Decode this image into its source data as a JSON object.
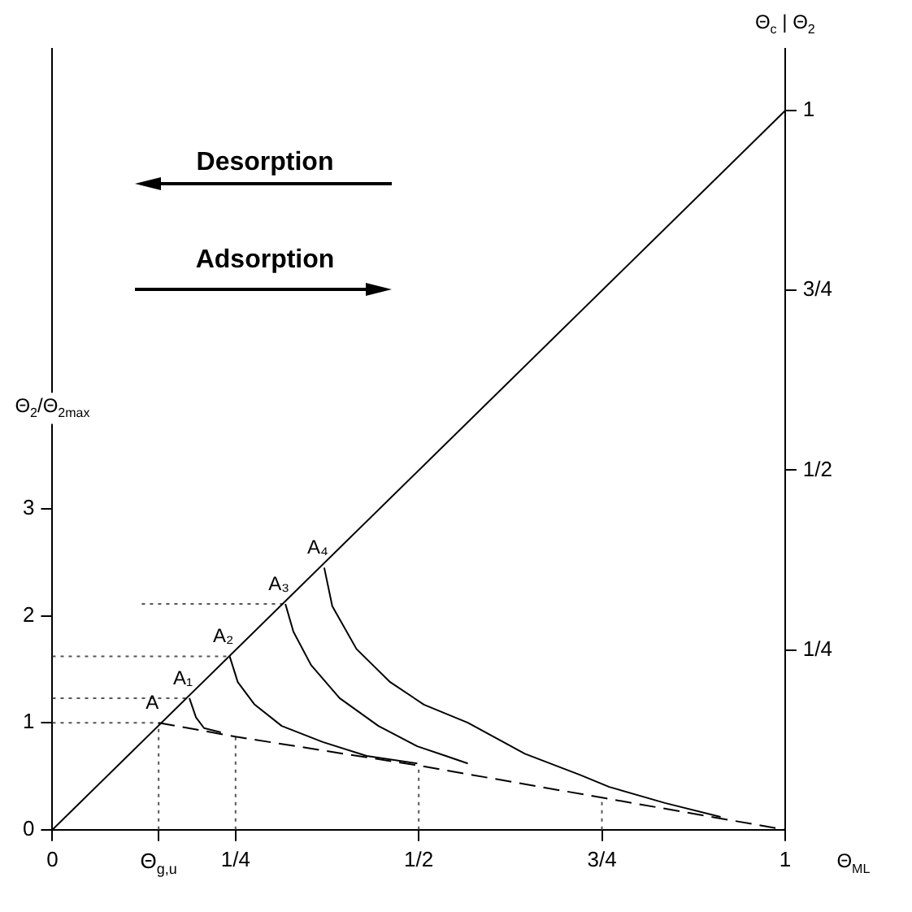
{
  "chart_data": {
    "type": "line",
    "xlabel": "Θ$_{ML}$",
    "ylabel": "Θ$_{2}$/Θ$_{2max}$",
    "y2label": "Θ$_{c}$ | Θ$_{2}$",
    "xlim": [
      0,
      1
    ],
    "xticks": [
      0,
      {
        "value": 0.145,
        "label": "Θ$_{g,u}$"
      },
      {
        "value": 0.25,
        "label": "1/4"
      },
      {
        "value": 0.5,
        "label": "1/2"
      },
      {
        "value": 0.75,
        "label": "3/4"
      },
      1
    ],
    "ylim": [
      0,
      7.3
    ],
    "yticks": [
      0,
      1,
      2,
      3
    ],
    "y2lim": [
      0,
      1.086
    ],
    "y2ticks": [
      {
        "value": 0.25,
        "label": "1/4"
      },
      {
        "value": 0.5,
        "label": "1/2"
      },
      {
        "value": 0.75,
        "label": "3/4"
      },
      1
    ],
    "grid": false,
    "legend": false,
    "marker": "none",
    "line_style": "solid",
    "series": [
      {
        "color": "#000000",
        "x": [
          0,
          1
        ],
        "values": [
          0,
          6.72
        ]
      },
      {
        "color": "#000000",
        "line_style": "dashed",
        "x": [
          0.145,
          0.25,
          0.5,
          0.75,
          1
        ],
        "values": [
          1,
          0.87,
          0.6,
          0.3,
          0
        ]
      },
      {
        "color": "#000000",
        "x": [
          0.187,
          0.196,
          0.207,
          0.23
        ],
        "values": [
          1.23,
          1.05,
          0.95,
          0.91
        ]
      },
      {
        "color": "#000000",
        "x": [
          0.242,
          0.253,
          0.276,
          0.313,
          0.369,
          0.429,
          0.498
        ],
        "values": [
          1.62,
          1.38,
          1.17,
          0.97,
          0.82,
          0.69,
          0.62
        ]
      },
      {
        "color": "#000000",
        "x": [
          0.318,
          0.329,
          0.353,
          0.392,
          0.445,
          0.498,
          0.537,
          0.567
        ],
        "values": [
          2.11,
          1.85,
          1.54,
          1.23,
          0.97,
          0.78,
          0.69,
          0.62
        ]
      },
      {
        "color": "#000000",
        "x": [
          0.371,
          0.382,
          0.415,
          0.461,
          0.507,
          0.567,
          0.645,
          0.721,
          0.76,
          0.836,
          0.912
        ],
        "values": [
          2.45,
          2.09,
          1.69,
          1.38,
          1.17,
          1.0,
          0.71,
          0.51,
          0.4,
          0.25,
          0.12
        ]
      },
      {
        "color": "#555555",
        "line_style": "dotted",
        "x": [
          0,
          0.145
        ],
        "values": [
          1,
          1
        ]
      },
      {
        "color": "#555555",
        "line_style": "dotted",
        "x": [
          0,
          0.187
        ],
        "values": [
          1.23,
          1.23
        ]
      },
      {
        "color": "#555555",
        "line_style": "dotted",
        "x": [
          0,
          0.242
        ],
        "values": [
          1.62,
          1.62
        ]
      },
      {
        "color": "#555555",
        "line_style": "dotted",
        "x": [
          0.122,
          0.318
        ],
        "values": [
          2.11,
          2.11
        ]
      },
      {
        "color": "#555555",
        "line_style": "dotted",
        "x": [
          0.145,
          0.145
        ],
        "values": [
          0,
          1
        ]
      },
      {
        "color": "#555555",
        "line_style": "dotted",
        "x": [
          0.25,
          0.25
        ],
        "values": [
          0,
          0.87
        ]
      },
      {
        "color": "#555555",
        "line_style": "dotted",
        "x": [
          0.5,
          0.5
        ],
        "values": [
          0,
          0.6
        ]
      },
      {
        "color": "#555555",
        "line_style": "dotted",
        "x": [
          0.75,
          0.75
        ],
        "values": [
          0,
          0.3
        ]
      }
    ],
    "annotations": [
      "Desorption",
      "Adsorption",
      {
        "text": "A",
        "x": 0.145,
        "y": 1
      },
      {
        "text": "A₁",
        "x": 0.187,
        "y": 1.23
      },
      {
        "text": "A₂",
        "x": 0.242,
        "y": 1.62
      },
      {
        "text": "A₃",
        "x": 0.318,
        "y": 2.11
      },
      {
        "text": "A₄",
        "x": 0.371,
        "y": 2.45
      }
    ]
  }
}
